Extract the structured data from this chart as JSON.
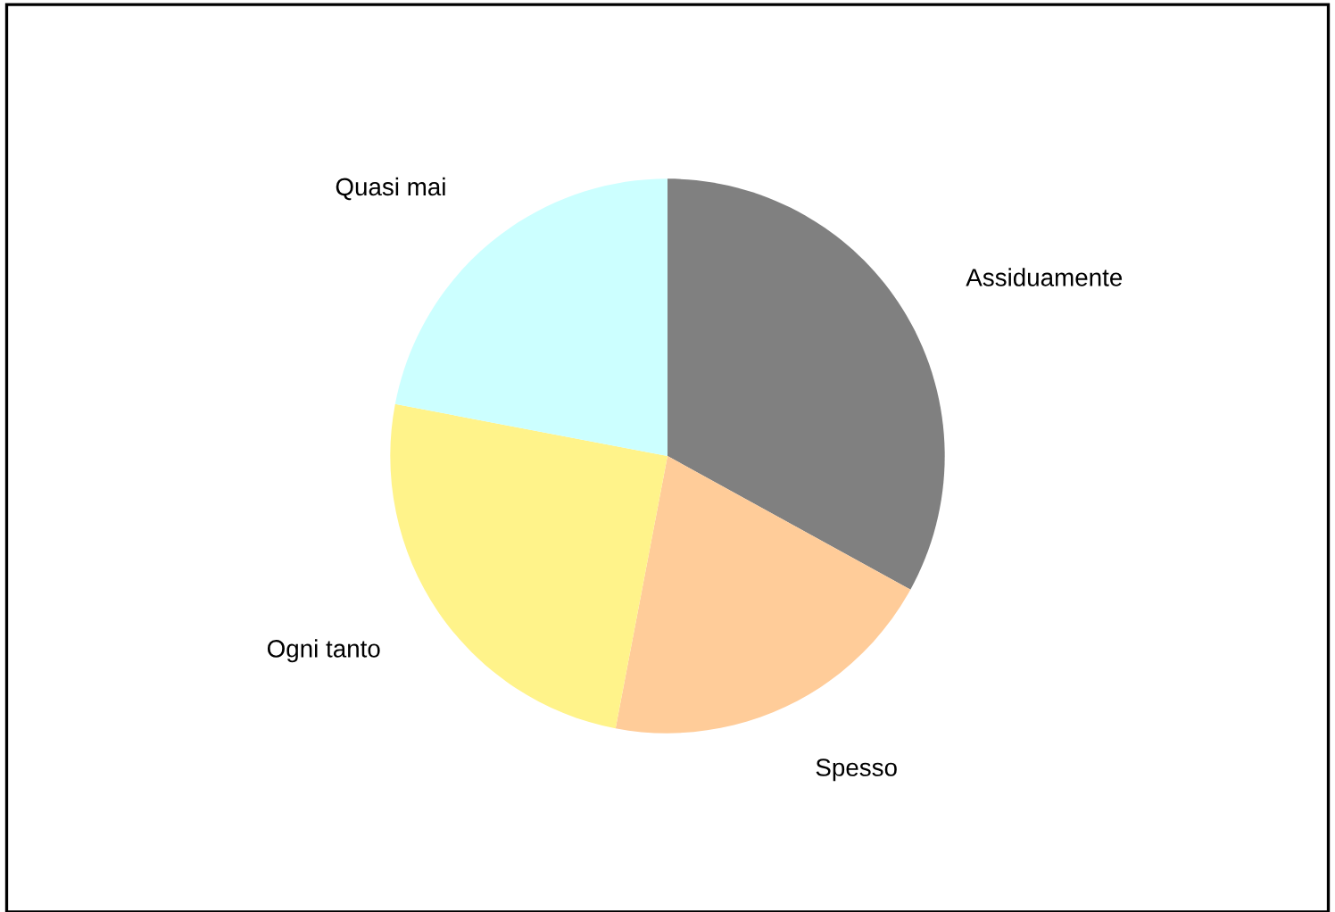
{
  "chart_data": {
    "type": "pie",
    "categories": [
      "Assiduamente",
      "Spesso",
      "Ogni tanto",
      "Quasi mai"
    ],
    "values": [
      33,
      20,
      25,
      22
    ],
    "colors": [
      "#808080",
      "#ffcc99",
      "#fff38a",
      "#ccffff"
    ]
  }
}
